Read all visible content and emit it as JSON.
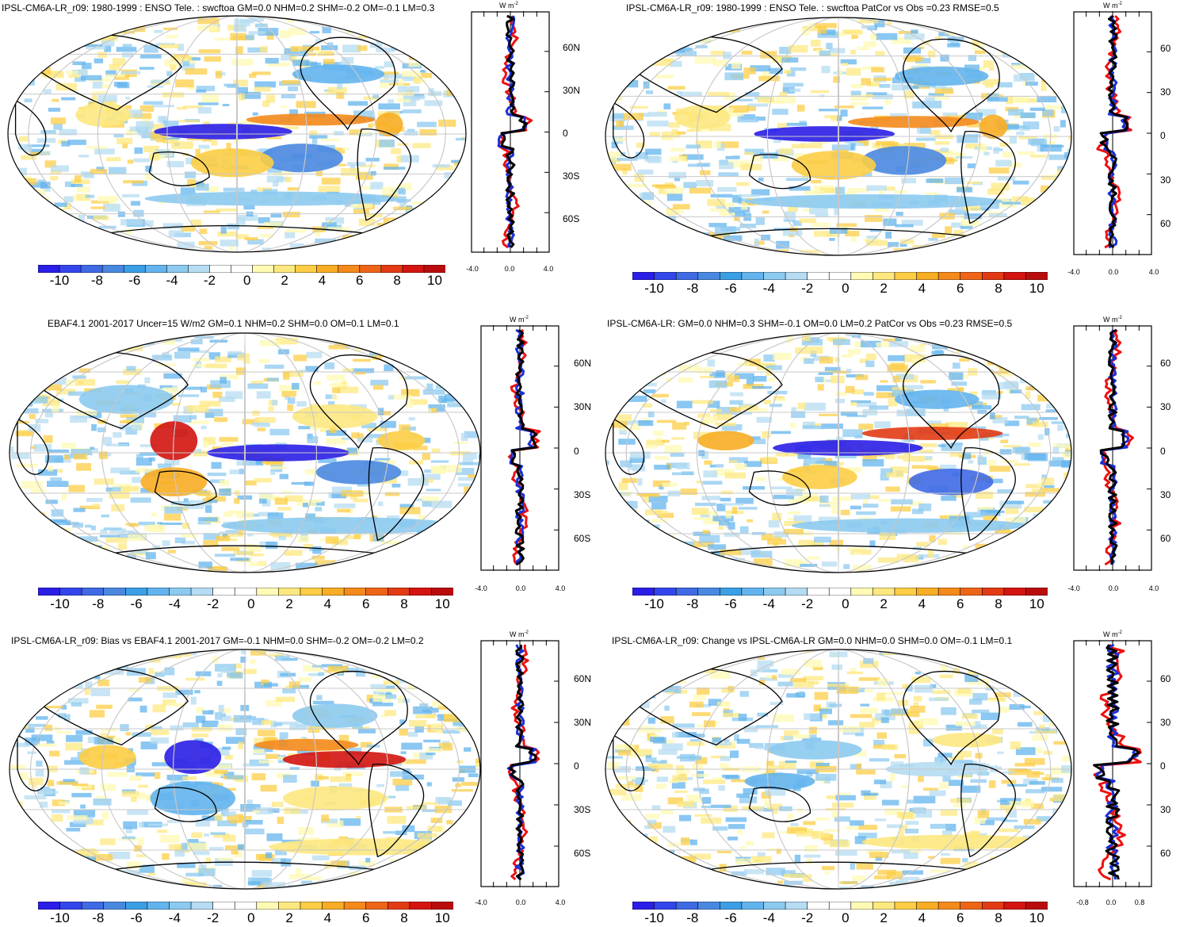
{
  "colorbar": {
    "colors": [
      "#2b1ee6",
      "#3346ec",
      "#3f6ae4",
      "#4a88e0",
      "#3b9fe6",
      "#63b4ee",
      "#8ccaf0",
      "#b5dcf2",
      "#ffffff",
      "#ffffff",
      "#fffab4",
      "#fde880",
      "#fccd45",
      "#f8ad24",
      "#f4891c",
      "#ee6517",
      "#e23b14",
      "#d31410",
      "#b90d0d"
    ],
    "labels": [
      "-10",
      "-8",
      "-6",
      "-4",
      "-2",
      "0",
      "2",
      "4",
      "6",
      "8",
      "10"
    ]
  },
  "panels": [
    {
      "id": "p1",
      "title": "IPSL-CM6A-LR_r09: 1980-1999 : ENSO Tele. : swcftoa GM=0.0 NHM=0.2 SHM=-0.2 OM=-0.1 LM=0.3",
      "unit": "W m",
      "unit_exp": "-2",
      "yticks": [
        "60N",
        "30N",
        "0",
        "30S",
        "60S"
      ],
      "xticks": [
        "-4.0",
        "0.0",
        "4.0"
      ]
    },
    {
      "id": "p2",
      "title": "IPSL-CM6A-LR_r09: 1980-1999 : ENSO Tele. : swcftoa PatCor vs Obs =0.23 RMSE=0.5",
      "unit": "W m",
      "unit_exp": "-2",
      "yticks": [
        "60",
        "30",
        "0",
        "30",
        "60"
      ],
      "xticks": [
        "-4.0",
        "0.0",
        "4.0"
      ]
    },
    {
      "id": "p3",
      "title": "EBAF4.1 2001-2017 Uncer=15 W/m2 GM=0.1 NHM=0.2 SHM=0.0 OM=0.1 LM=0.1",
      "unit": "W m",
      "unit_exp": "-2",
      "yticks": [
        "60N",
        "30N",
        "0",
        "30S",
        "60S"
      ],
      "xticks": [
        "-4.0",
        "0.0",
        "4.0"
      ]
    },
    {
      "id": "p4",
      "title": "IPSL-CM6A-LR: GM=0.0 NHM=0.3 SHM=-0.1 OM=0.0 LM=0.2 PatCor vs Obs =0.23 RMSE=0.5",
      "unit": "W m",
      "unit_exp": "-2",
      "yticks": [
        "60",
        "30",
        "0",
        "30",
        "60"
      ],
      "xticks": [
        "-4.0",
        "0.0",
        "4.0"
      ]
    },
    {
      "id": "p5",
      "title": "IPSL-CM6A-LR_r09: Bias vs EBAF4.1 2001-2017 GM=-0.1 NHM=0.0 SHM=-0.2 OM=-0.2 LM=0.2",
      "unit": "W m",
      "unit_exp": "-2",
      "yticks": [
        "60N",
        "30N",
        "0",
        "30S",
        "60S"
      ],
      "xticks": [
        "-4.0",
        "0.0",
        "4.0"
      ]
    },
    {
      "id": "p6",
      "title": "IPSL-CM6A-LR_r09: Change vs IPSL-CM6A-LR GM=0.0 NHM=0.0 SHM=0.0 OM=-0.1 LM=0.1",
      "unit": "W m",
      "unit_exp": "-2",
      "yticks": [
        "60",
        "30",
        "0",
        "30",
        "60"
      ],
      "xticks": [
        "-0.8",
        "0.0",
        "0.8"
      ]
    }
  ],
  "line_colors": {
    "red": "#ee1111",
    "blue": "#1a2fd6",
    "black": "#000000"
  }
}
